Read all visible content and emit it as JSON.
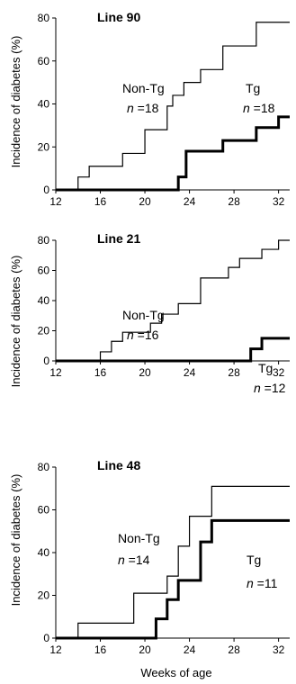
{
  "chart_data": [
    {
      "type": "line",
      "step": true,
      "title": "Line 90",
      "ylabel": "Incidence of diabetes (%)",
      "xlabel": "",
      "xlim": [
        12,
        33
      ],
      "ylim": [
        0,
        80
      ],
      "xticks": [
        12,
        16,
        20,
        24,
        28,
        32
      ],
      "yticks": [
        0,
        20,
        40,
        60,
        80
      ],
      "series": [
        {
          "name": "Non-Tg",
          "n_label": "n =18",
          "style": "thin",
          "x": [
            12,
            14,
            15,
            18,
            20,
            22,
            22.5,
            23.5,
            25,
            27,
            30,
            33
          ],
          "y": [
            0,
            6,
            11,
            17,
            28,
            39,
            44,
            50,
            56,
            67,
            78,
            78
          ]
        },
        {
          "name": "Tg",
          "n_label": "n =18",
          "style": "thick",
          "x": [
            12,
            23,
            23.7,
            27,
            30,
            32,
            33
          ],
          "y": [
            0,
            6,
            18,
            23,
            29,
            34,
            34
          ]
        }
      ]
    },
    {
      "type": "line",
      "step": true,
      "title": "Line 21",
      "ylabel": "Incidence of diabetes (%)",
      "xlabel": "",
      "xlim": [
        12,
        33
      ],
      "ylim": [
        0,
        80
      ],
      "xticks": [
        12,
        16,
        20,
        24,
        28,
        32
      ],
      "yticks": [
        0,
        20,
        40,
        60,
        80
      ],
      "series": [
        {
          "name": "Non-Tg",
          "n_label": "n =16",
          "style": "thin",
          "x": [
            12,
            16,
            17,
            18,
            20.5,
            21.5,
            23,
            25,
            27.5,
            28.5,
            30.5,
            32,
            33
          ],
          "y": [
            0,
            6,
            13,
            19,
            25,
            31,
            38,
            55,
            62,
            68,
            74,
            80,
            80
          ]
        },
        {
          "name": "Tg",
          "n_label": "n =12",
          "style": "thick",
          "x": [
            12,
            29.5,
            30.5,
            33
          ],
          "y": [
            0,
            8,
            15,
            15
          ]
        }
      ]
    },
    {
      "type": "line",
      "step": true,
      "title": "Line 48",
      "ylabel": "Incidence of diabetes (%)",
      "xlabel": "Weeks of age",
      "xlim": [
        12,
        33
      ],
      "ylim": [
        0,
        80
      ],
      "xticks": [
        12,
        16,
        20,
        24,
        28,
        32
      ],
      "yticks": [
        0,
        20,
        40,
        60,
        80
      ],
      "series": [
        {
          "name": "Non-Tg",
          "n_label": "n =14",
          "style": "thin",
          "x": [
            12,
            14,
            19,
            22,
            23,
            24,
            26,
            33
          ],
          "y": [
            0,
            7,
            21,
            29,
            43,
            57,
            71,
            71
          ]
        },
        {
          "name": "Tg",
          "n_label": "n =11",
          "style": "thick",
          "x": [
            12,
            21,
            22,
            23,
            25,
            26,
            33
          ],
          "y": [
            0,
            9,
            18,
            27,
            45,
            55,
            55
          ]
        }
      ]
    }
  ]
}
